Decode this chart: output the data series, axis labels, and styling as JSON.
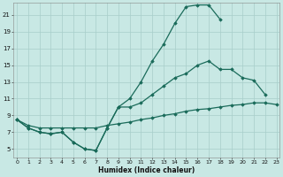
{
  "xlabel": "Humidex (Indice chaleur)",
  "bg_color": "#c8e8e4",
  "grid_color": "#a8ceca",
  "line_color": "#1a6b5a",
  "curve1_x": [
    0,
    1,
    2,
    3,
    4,
    5,
    6,
    7,
    8,
    9,
    10,
    11,
    12,
    13,
    14,
    15,
    16,
    17,
    18
  ],
  "curve1_y": [
    8.5,
    7.5,
    7.0,
    6.8,
    7.0,
    5.8,
    5.0,
    4.8,
    7.5,
    10.0,
    11.0,
    13.0,
    15.5,
    17.5,
    20.0,
    22.0,
    22.2,
    22.2,
    20.5
  ],
  "curve2_x": [
    0,
    1,
    2,
    3,
    4,
    5,
    6,
    7,
    8,
    9,
    10,
    11,
    12,
    13,
    14,
    15,
    16,
    17,
    18,
    19,
    20,
    21,
    22
  ],
  "curve2_y": [
    8.5,
    7.5,
    7.0,
    6.8,
    7.0,
    5.8,
    5.0,
    4.8,
    7.5,
    10.0,
    10.0,
    10.5,
    11.5,
    12.5,
    13.5,
    14.0,
    15.0,
    15.5,
    14.5,
    14.5,
    13.5,
    13.2,
    11.5
  ],
  "curve3_x": [
    0,
    1,
    2,
    3,
    4,
    5,
    6,
    7,
    8,
    9,
    10,
    11,
    12,
    13,
    14,
    15,
    16,
    17,
    18,
    19,
    20,
    21,
    22,
    23
  ],
  "curve3_y": [
    8.5,
    7.8,
    7.5,
    7.5,
    7.5,
    7.5,
    7.5,
    7.5,
    7.8,
    8.0,
    8.2,
    8.5,
    8.7,
    9.0,
    9.2,
    9.5,
    9.7,
    9.8,
    10.0,
    10.2,
    10.3,
    10.5,
    10.5,
    10.3
  ],
  "ylim": [
    4,
    22.5
  ],
  "xlim": [
    -0.3,
    23.3
  ],
  "yticks": [
    5,
    7,
    9,
    11,
    13,
    15,
    17,
    19,
    21
  ],
  "xticks": [
    0,
    1,
    2,
    3,
    4,
    5,
    6,
    7,
    8,
    9,
    10,
    11,
    12,
    13,
    14,
    15,
    16,
    17,
    18,
    19,
    20,
    21,
    22,
    23
  ]
}
